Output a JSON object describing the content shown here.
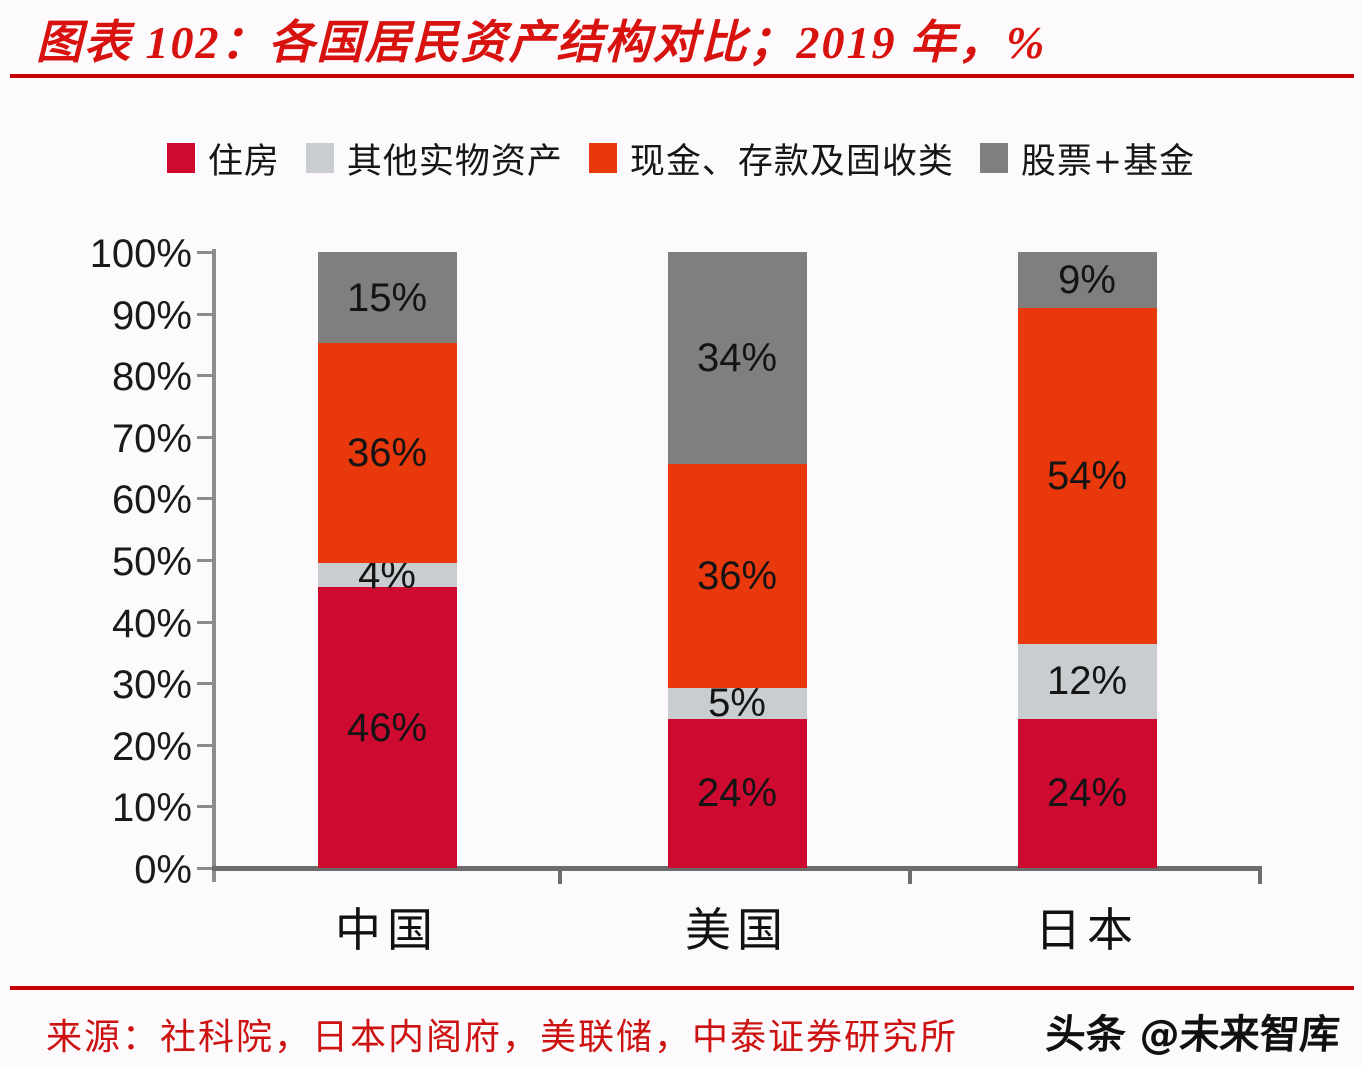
{
  "title": "图表 102：各国居民资产结构对比；2019 年，%",
  "chart_data": {
    "type": "bar",
    "stacked": true,
    "categories": [
      "中国",
      "美国",
      "日本"
    ],
    "series": [
      {
        "name": "住房",
        "color": "#ce0a31",
        "values": [
          46,
          24,
          24
        ]
      },
      {
        "name": "其他实物资产",
        "color": "#c9cdd0",
        "values": [
          4,
          5,
          12
        ]
      },
      {
        "name": "现金、存款及固收类",
        "color": "#e9380c",
        "values": [
          36,
          36,
          54
        ]
      },
      {
        "name": "股票+基金",
        "color": "#817e7e",
        "values": [
          15,
          34,
          9
        ]
      }
    ],
    "value_suffix": "%",
    "y_tick_labels": [
      "0%",
      "10%",
      "20%",
      "30%",
      "40%",
      "50%",
      "60%",
      "70%",
      "80%",
      "90%",
      "100%"
    ],
    "ylim": [
      0,
      100
    ],
    "grid": false,
    "legend_position": "top"
  },
  "colors": {
    "title_text": "#d8120f",
    "rule": "#c40202",
    "axis_line": "#8c8c8c",
    "baseline": "#6d6d6d",
    "background": "#fcfafc",
    "source_text": "#cd1212"
  },
  "footer": {
    "source": "来源：社科院，日本内阁府，美联储，中泰证券研究所",
    "watermark": "头条 @未来智库"
  }
}
